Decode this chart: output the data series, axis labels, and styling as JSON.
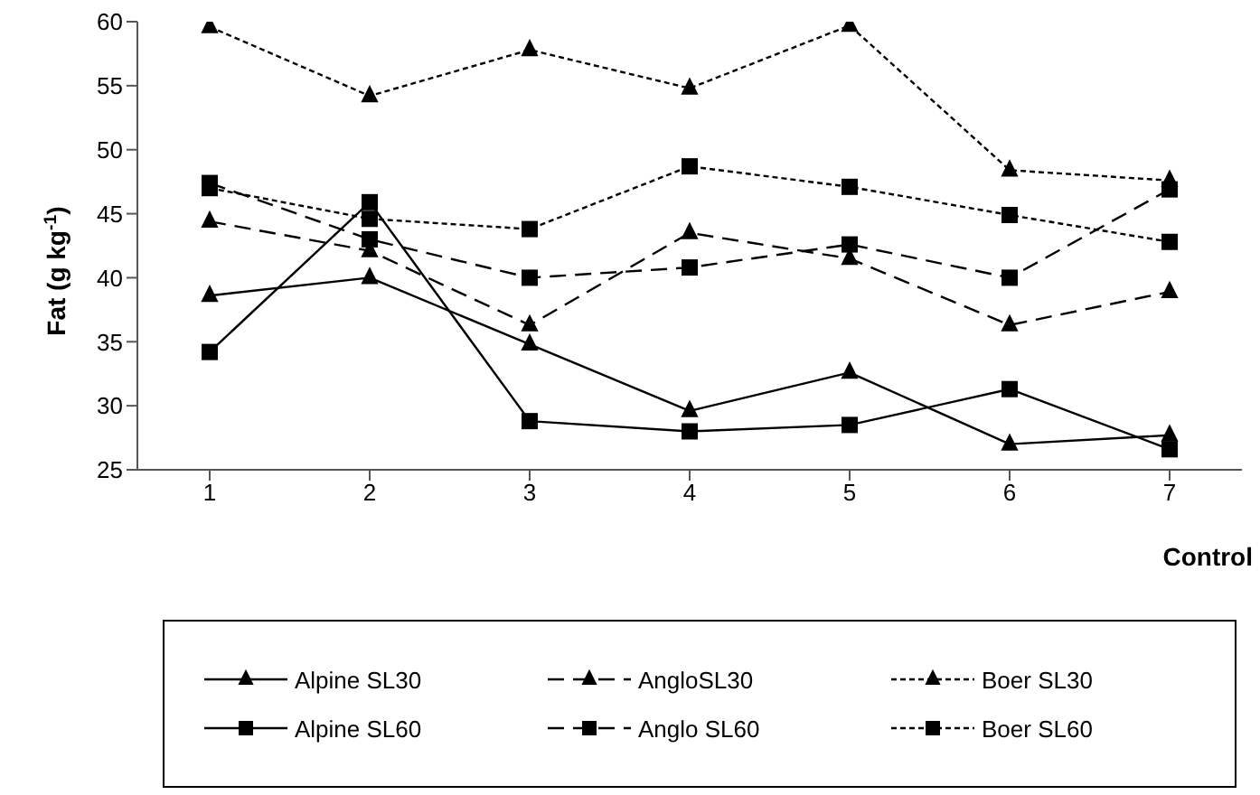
{
  "chart_data": {
    "type": "line",
    "xlabel": "Control",
    "ylabel": "Fat (g kg$^{-1}$)",
    "categories": [
      "1",
      "2",
      "3",
      "4",
      "5",
      "6",
      "7"
    ],
    "ylim": [
      25,
      60
    ],
    "yticks": [
      25,
      30,
      35,
      40,
      45,
      50,
      55,
      60
    ],
    "grid": false,
    "legend": "bottom",
    "series": [
      {
        "name": "Alpine SL30",
        "color": "#000000",
        "marker": "triangle",
        "line_style": "solid",
        "values": [
          38.6,
          40,
          34.8,
          29.6,
          32.6,
          27,
          27.7
        ]
      },
      {
        "name": "AngloSL30",
        "color": "#000000",
        "marker": "triangle",
        "line_style": "dashed",
        "values": [
          44.4,
          42.1,
          36.3,
          43.5,
          41.5,
          36.3,
          38.9
        ]
      },
      {
        "name": "Boer SL30",
        "color": "#000000",
        "marker": "triangle",
        "line_style": "dotted",
        "values": [
          59.6,
          54.2,
          57.8,
          54.8,
          59.7,
          48.4,
          47.6
        ]
      },
      {
        "name": "Alpine SL60",
        "color": "#000000",
        "marker": "square",
        "line_style": "solid",
        "values": [
          34.2,
          45.9,
          28.8,
          28,
          28.5,
          31.3,
          26.6
        ]
      },
      {
        "name": "Anglo SL60",
        "color": "#000000",
        "marker": "square",
        "line_style": "dashed",
        "values": [
          47.4,
          43,
          40,
          40.8,
          42.6,
          40,
          46.9
        ]
      },
      {
        "name": "Boer SL60",
        "color": "#000000",
        "marker": "square",
        "line_style": "dotted",
        "values": [
          47,
          44.6,
          43.8,
          48.7,
          47.1,
          44.9,
          42.8
        ]
      }
    ]
  }
}
